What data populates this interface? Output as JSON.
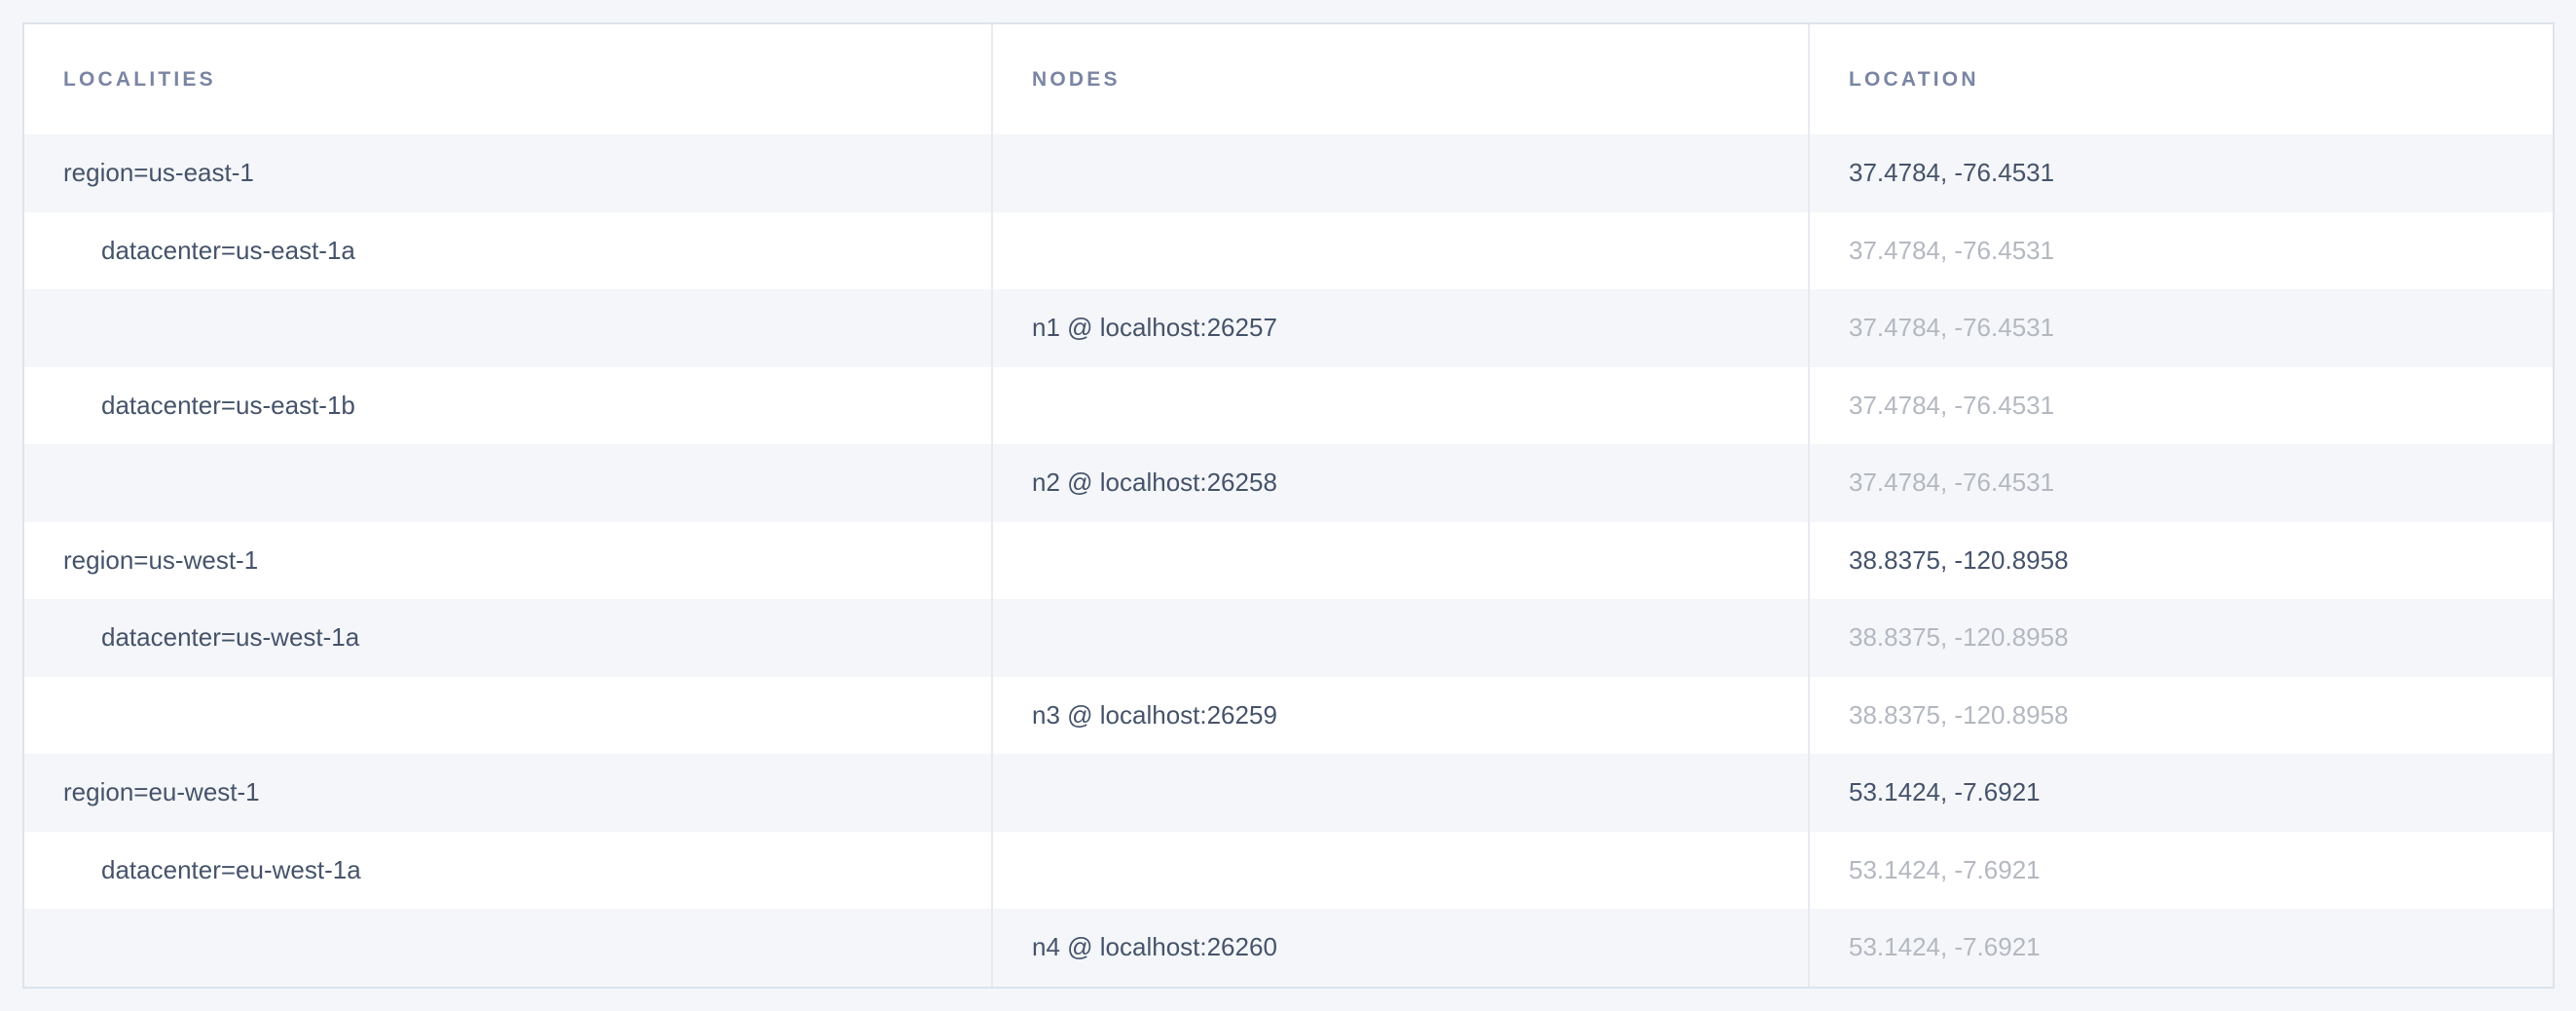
{
  "colors": {
    "page_bg": "#f4f6f9",
    "table_bg": "#ffffff",
    "stripe": "#f4f6f9",
    "border": "#dde3ec",
    "column_separator": "#e7eaf1",
    "header_text": "#7b85a3",
    "text": "#46536a",
    "muted_text": "#b4b8c0"
  },
  "table": {
    "columns": [
      {
        "key": "localities",
        "label": "Localities"
      },
      {
        "key": "nodes",
        "label": "Nodes"
      },
      {
        "key": "location",
        "label": "Location"
      }
    ],
    "rows": [
      {
        "type": "region",
        "indent": 0,
        "locality": "region=us-east-1",
        "node": "",
        "location": "37.4784, -76.4531",
        "location_muted": false
      },
      {
        "type": "datacenter",
        "indent": 1,
        "locality": "datacenter=us-east-1a",
        "node": "",
        "location": "37.4784, -76.4531",
        "location_muted": true
      },
      {
        "type": "node",
        "indent": 0,
        "locality": "",
        "node": "n1 @ localhost:26257",
        "location": "37.4784, -76.4531",
        "location_muted": true
      },
      {
        "type": "datacenter",
        "indent": 1,
        "locality": "datacenter=us-east-1b",
        "node": "",
        "location": "37.4784, -76.4531",
        "location_muted": true
      },
      {
        "type": "node",
        "indent": 0,
        "locality": "",
        "node": "n2 @ localhost:26258",
        "location": "37.4784, -76.4531",
        "location_muted": true
      },
      {
        "type": "region",
        "indent": 0,
        "locality": "region=us-west-1",
        "node": "",
        "location": "38.8375, -120.8958",
        "location_muted": false
      },
      {
        "type": "datacenter",
        "indent": 1,
        "locality": "datacenter=us-west-1a",
        "node": "",
        "location": "38.8375, -120.8958",
        "location_muted": true
      },
      {
        "type": "node",
        "indent": 0,
        "locality": "",
        "node": "n3 @ localhost:26259",
        "location": "38.8375, -120.8958",
        "location_muted": true
      },
      {
        "type": "region",
        "indent": 0,
        "locality": "region=eu-west-1",
        "node": "",
        "location": "53.1424, -7.6921",
        "location_muted": false
      },
      {
        "type": "datacenter",
        "indent": 1,
        "locality": "datacenter=eu-west-1a",
        "node": "",
        "location": "53.1424, -7.6921",
        "location_muted": true
      },
      {
        "type": "node",
        "indent": 0,
        "locality": "",
        "node": "n4 @ localhost:26260",
        "location": "53.1424, -7.6921",
        "location_muted": true
      }
    ]
  }
}
